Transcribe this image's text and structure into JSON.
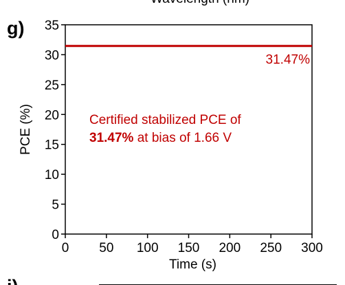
{
  "top_cut_label": "Wavelength (nm)",
  "panel_label": "g)",
  "next_panel_label": "i)",
  "chart_data": {
    "type": "line",
    "xlabel": "Time (s)",
    "ylabel": "PCE (%)",
    "xlim": [
      0,
      300
    ],
    "ylim": [
      0,
      35
    ],
    "xticks": [
      0,
      50,
      100,
      150,
      200,
      250,
      300
    ],
    "yticks": [
      0,
      5,
      10,
      15,
      20,
      25,
      30,
      35
    ],
    "grid": false,
    "series": [
      {
        "color": "#c00000",
        "x": [
          0,
          25,
          50,
          75,
          100,
          125,
          150,
          175,
          200,
          225,
          250,
          275,
          300
        ],
        "values": [
          31.47,
          31.47,
          31.47,
          31.47,
          31.47,
          31.47,
          31.47,
          31.47,
          31.47,
          31.47,
          31.47,
          31.47,
          31.47
        ]
      }
    ],
    "annotations": {
      "end_value": "31.47%",
      "text_line1": "Certified stabilized PCE of",
      "text_line2_bold": "31.47%",
      "text_line2_rest": " at bias of 1.66 V",
      "color": "#c00000"
    }
  }
}
